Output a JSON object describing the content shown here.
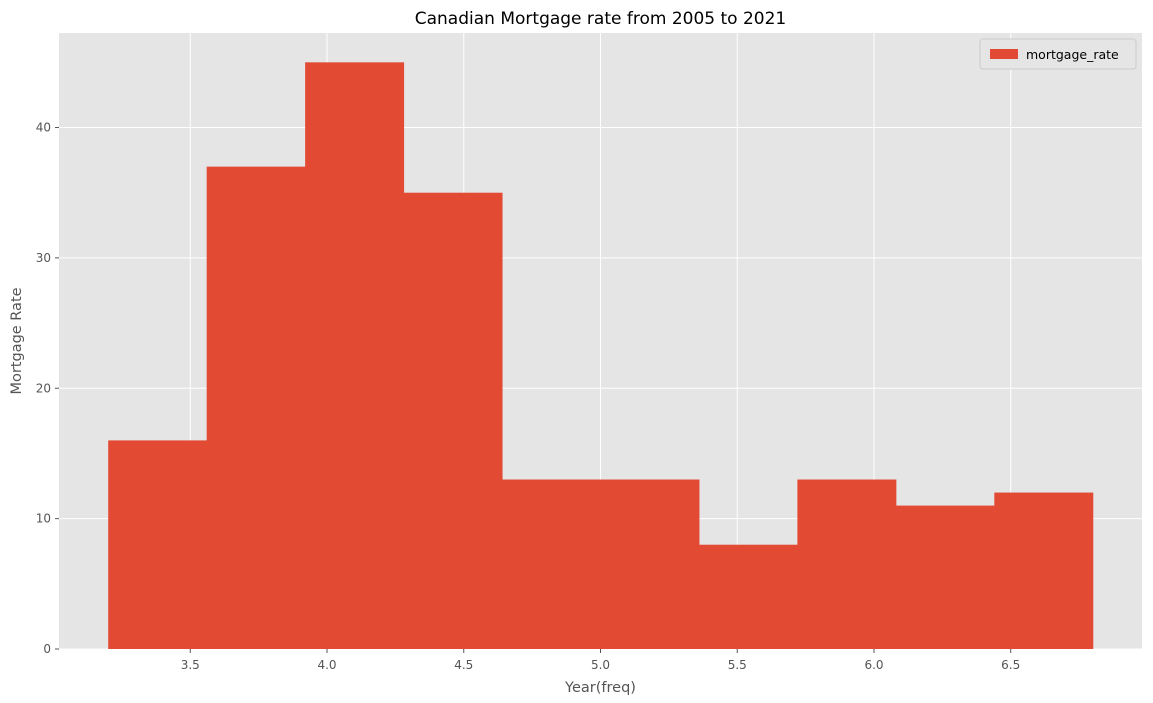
{
  "chart_data": {
    "type": "bar",
    "title": "Canadian Mortgage rate from 2005 to 2021",
    "xlabel": "Year(freq)",
    "ylabel": "Mortgage Rate",
    "bin_edges": [
      3.2,
      3.56,
      3.92,
      4.28,
      4.64,
      5.0,
      5.36,
      5.72,
      6.08,
      6.44,
      6.8
    ],
    "series": [
      {
        "name": "mortgage_rate",
        "values": [
          16,
          37,
          45,
          35,
          13,
          13,
          8,
          13,
          11,
          12
        ]
      }
    ],
    "xlim": [
      3.02,
      6.98
    ],
    "ylim": [
      0,
      47.25
    ],
    "x_ticks": [
      3.5,
      4.0,
      4.5,
      5.0,
      5.5,
      6.0,
      6.5
    ],
    "x_tick_labels": [
      "3.5",
      "4.0",
      "4.5",
      "5.0",
      "5.5",
      "6.0",
      "6.5"
    ],
    "y_ticks": [
      0,
      10,
      20,
      30,
      40
    ],
    "y_tick_labels": [
      "0",
      "10",
      "20",
      "30",
      "40"
    ],
    "grid": true,
    "legend_position": "top-right",
    "colors": {
      "bar": "#e24a33",
      "plot_background": "#e5e5e5",
      "grid": "#ffffff"
    }
  }
}
